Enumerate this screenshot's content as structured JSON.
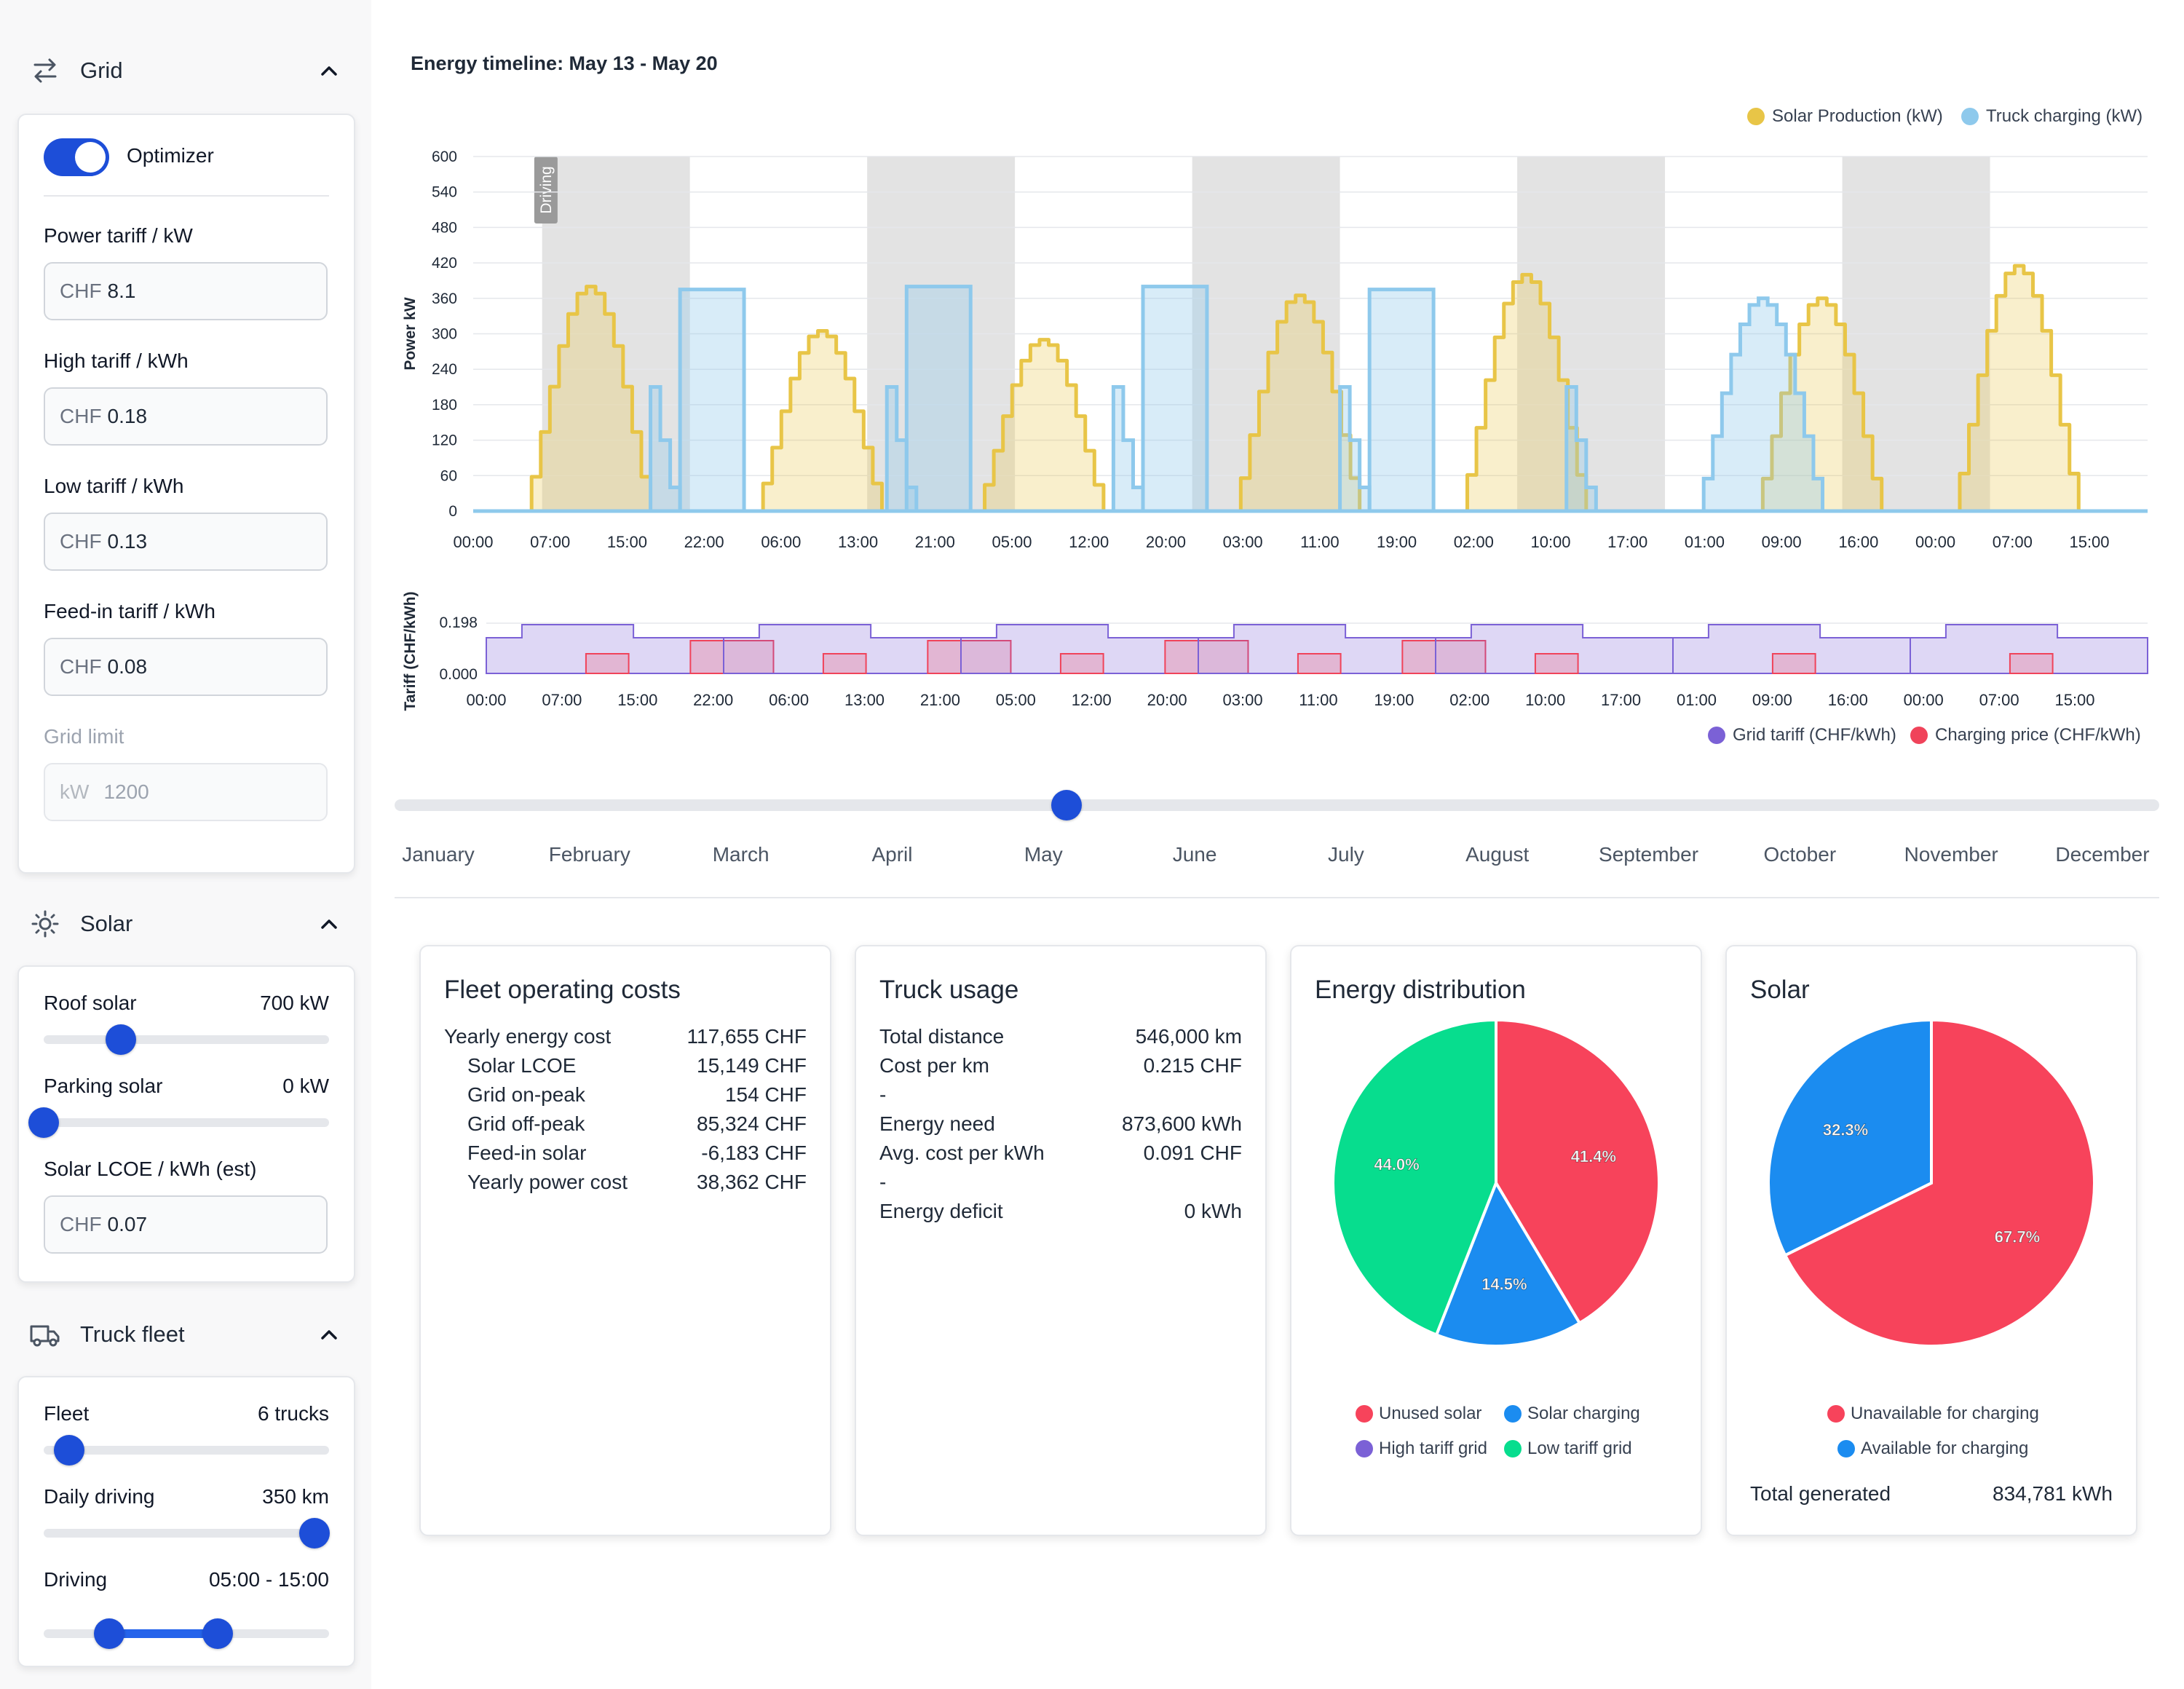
{
  "sidebar": {
    "grid": {
      "title": "Grid",
      "optimizer_label": "Optimizer",
      "optimizer_on": true,
      "power_tariff": {
        "label": "Power tariff / kW",
        "prefix": "CHF",
        "value": "8.1"
      },
      "high_tariff": {
        "label": "High tariff / kWh",
        "prefix": "CHF",
        "value": "0.18"
      },
      "low_tariff": {
        "label": "Low tariff / kWh",
        "prefix": "CHF",
        "value": "0.13"
      },
      "feedin_tariff": {
        "label": "Feed-in tariff / kWh",
        "prefix": "CHF",
        "value": "0.08"
      },
      "grid_limit": {
        "label": "Grid limit",
        "prefix": "kW",
        "value": "1200"
      }
    },
    "solar": {
      "title": "Solar",
      "roof": {
        "label": "Roof solar",
        "value": "700 kW",
        "level": 0.27
      },
      "parking": {
        "label": "Parking solar",
        "value": "0 kW",
        "level": 0.0
      },
      "lcoe": {
        "label": "Solar LCOE / kWh (est)",
        "prefix": "CHF",
        "value": "0.07"
      }
    },
    "fleet": {
      "title": "Truck fleet",
      "fleet": {
        "label": "Fleet",
        "value": "6 trucks",
        "level": 0.09
      },
      "daily": {
        "label": "Daily driving",
        "value": "350 km",
        "level": 0.95
      },
      "driving": {
        "label": "Driving",
        "value": "05:00 - 15:00",
        "range": [
          0.23,
          0.61
        ]
      }
    }
  },
  "timeline": {
    "title": "Energy timeline: May 13 - May 20",
    "legend_top": [
      {
        "label": "Solar Production (kW)",
        "color": "#e8c547"
      },
      {
        "label": "Truck charging (kW)",
        "color": "#8ec9ec"
      }
    ],
    "legend_bottom": [
      {
        "label": "Grid tariff (CHF/kWh)",
        "color": "#7b61d6"
      },
      {
        "label": "Charging price (CHF/kWh)",
        "color": "#f0435a"
      }
    ],
    "driving_label": "Driving"
  },
  "chart_data": [
    {
      "type": "area",
      "title": "",
      "ylabel": "Power kW",
      "ylim": [
        0,
        600
      ],
      "yticks": [
        0,
        60,
        120,
        180,
        240,
        300,
        360,
        420,
        480,
        540,
        600
      ],
      "x_ticks": [
        "00:00",
        "07:00",
        "15:00",
        "22:00",
        "06:00",
        "13:00",
        "21:00",
        "05:00",
        "12:00",
        "20:00",
        "03:00",
        "11:00",
        "19:00",
        "02:00",
        "10:00",
        "17:00",
        "01:00",
        "09:00",
        "16:00",
        "00:00",
        "07:00",
        "15:00"
      ],
      "series": [
        {
          "name": "Solar Production (kW)",
          "peaks_kw": [
            380,
            305,
            290,
            365,
            400,
            360,
            415
          ]
        },
        {
          "name": "Truck charging (kW)",
          "block_kw": [
            375,
            380,
            380,
            375
          ]
        }
      ]
    },
    {
      "type": "area",
      "title": "",
      "ylabel": "Tariff (CHF/kWh)",
      "yticks": [
        "0.198",
        "0.000"
      ],
      "x_ticks": [
        "00:00",
        "07:00",
        "15:00",
        "22:00",
        "06:00",
        "13:00",
        "21:00",
        "05:00",
        "12:00",
        "20:00",
        "03:00",
        "11:00",
        "19:00",
        "02:00",
        "10:00",
        "17:00",
        "01:00",
        "09:00",
        "16:00",
        "00:00",
        "07:00",
        "15:00"
      ],
      "series": [
        {
          "name": "Grid tariff (CHF/kWh)",
          "high": 0.18,
          "low": 0.13
        },
        {
          "name": "Charging price (CHF/kWh)"
        }
      ]
    },
    {
      "type": "pie",
      "title": "Energy distribution",
      "labels": [
        "Unused solar",
        "Solar charging",
        "High tariff grid",
        "Low tariff grid"
      ],
      "values": [
        41.4,
        14.5,
        0.0,
        44.0
      ],
      "colors": [
        "#f7435b",
        "#1b8cf0",
        "#7b61d6",
        "#07dd8e"
      ],
      "value_labels": [
        "41.4%",
        "14.5%",
        "",
        "44.0%"
      ]
    },
    {
      "type": "pie",
      "title": "Solar",
      "labels": [
        "Unavailable for charging",
        "Available for charging"
      ],
      "values": [
        67.7,
        32.3
      ],
      "colors": [
        "#f7435b",
        "#1b8cf0"
      ],
      "value_labels": [
        "67.7%",
        "32.3%"
      ]
    }
  ],
  "months": [
    "January",
    "February",
    "March",
    "April",
    "May",
    "June",
    "July",
    "August",
    "September",
    "October",
    "November",
    "December"
  ],
  "month_selected": 4,
  "fleet_costs": {
    "title": "Fleet operating costs",
    "rows": [
      {
        "k": "Yearly energy cost",
        "v": "117,655 CHF"
      },
      {
        "k": "Solar LCOE",
        "v": "15,149 CHF",
        "indent": true
      },
      {
        "k": "Grid on-peak",
        "v": "154 CHF",
        "indent": true
      },
      {
        "k": "Grid off-peak",
        "v": "85,324 CHF",
        "indent": true
      },
      {
        "k": "Feed-in solar",
        "v": "-6,183 CHF",
        "indent": true
      },
      {
        "k": "Yearly power cost",
        "v": "38,362 CHF",
        "indent": true
      }
    ]
  },
  "truck_usage": {
    "title": "Truck usage",
    "rows": [
      {
        "k": "Total distance",
        "v": "546,000 km"
      },
      {
        "k": "Cost per km",
        "v": "0.215 CHF"
      },
      {
        "k": "-",
        "v": ""
      },
      {
        "k": "Energy need",
        "v": "873,600 kWh"
      },
      {
        "k": "Avg. cost per kWh",
        "v": "0.091 CHF"
      },
      {
        "k": "-",
        "v": ""
      },
      {
        "k": "Energy deficit",
        "v": "0 kWh"
      }
    ]
  },
  "energy_distribution": {
    "title": "Energy distribution"
  },
  "solar_card": {
    "title": "Solar",
    "total_label": "Total generated",
    "total_value": "834,781 kWh"
  }
}
